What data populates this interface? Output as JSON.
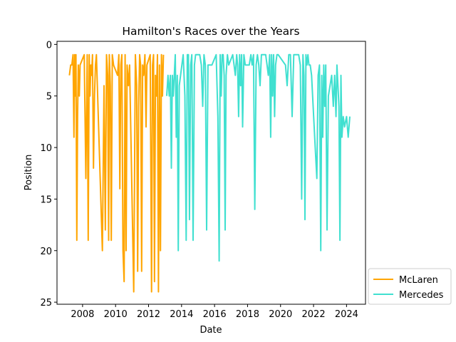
{
  "chart_data": {
    "type": "line",
    "title": "Hamilton's Races over the Years",
    "xlabel": "Date",
    "ylabel": "Position",
    "xlim": [
      2006.45,
      2025.15
    ],
    "ylim": [
      25.2,
      -0.3
    ],
    "y_inverted": true,
    "grid": false,
    "legend_placement": "outside-lower-right",
    "x_ticks": [
      2008,
      2010,
      2012,
      2014,
      2016,
      2018,
      2020,
      2022,
      2024
    ],
    "x_tick_labels": [
      "2008",
      "2010",
      "2012",
      "2014",
      "2016",
      "2018",
      "2020",
      "2022",
      "2024"
    ],
    "y_ticks": [
      0,
      5,
      10,
      15,
      20,
      25
    ],
    "y_tick_labels": [
      "0",
      "5",
      "10",
      "15",
      "20",
      "25"
    ],
    "series": [
      {
        "name": "McLaren",
        "color": "#ffa500",
        "x": [
          2007.2,
          2007.28,
          2007.35,
          2007.42,
          2007.48,
          2007.52,
          2007.56,
          2007.6,
          2007.65,
          2007.7,
          2007.74,
          2007.8,
          2007.85,
          2008.1,
          2008.2,
          2008.28,
          2008.34,
          2008.4,
          2008.45,
          2008.5,
          2008.55,
          2008.6,
          2008.66,
          2008.72,
          2008.78,
          2008.84,
          2009.2,
          2009.3,
          2009.38,
          2009.45,
          2009.52,
          2009.58,
          2009.62,
          2009.68,
          2009.74,
          2009.8,
          2009.88,
          2010.12,
          2010.2,
          2010.26,
          2010.32,
          2010.38,
          2010.45,
          2010.52,
          2010.58,
          2010.64,
          2010.7,
          2010.78,
          2010.85,
          2011.1,
          2011.2,
          2011.28,
          2011.34,
          2011.4,
          2011.46,
          2011.52,
          2011.58,
          2011.64,
          2011.7,
          2011.78,
          2011.85,
          2011.9,
          2012.1,
          2012.18,
          2012.24,
          2012.3,
          2012.36,
          2012.42,
          2012.48,
          2012.54,
          2012.6,
          2012.66,
          2012.72,
          2012.78,
          2012.84,
          2012.9
        ],
        "y": [
          3,
          2,
          2,
          1,
          9,
          1,
          5,
          1,
          19,
          7,
          2,
          5,
          2,
          1,
          13,
          1,
          19,
          1,
          5,
          2,
          3,
          1,
          12,
          5,
          2,
          1,
          20,
          4,
          18,
          1,
          3,
          19,
          1,
          4,
          19,
          1,
          2,
          3,
          1,
          14,
          2,
          1,
          20,
          23,
          1,
          20,
          2,
          4,
          2,
          24,
          1,
          4,
          22,
          6,
          1,
          2,
          22,
          2,
          3,
          1,
          8,
          2,
          1,
          24,
          2,
          1,
          23,
          3,
          5,
          1,
          24,
          2,
          20,
          1,
          5,
          1
        ]
      },
      {
        "name": "Mercedes",
        "color": "#40e0d0",
        "x": [
          2013.1,
          2013.18,
          2013.25,
          2013.32,
          2013.38,
          2013.44,
          2013.5,
          2013.56,
          2013.62,
          2013.68,
          2013.74,
          2013.8,
          2013.86,
          2014.1,
          2014.2,
          2014.28,
          2014.35,
          2014.42,
          2014.48,
          2014.55,
          2014.62,
          2014.7,
          2014.78,
          2014.85,
          2015.1,
          2015.2,
          2015.28,
          2015.36,
          2015.44,
          2015.52,
          2015.6,
          2015.68,
          2015.76,
          2015.84,
          2016.1,
          2016.2,
          2016.28,
          2016.34,
          2016.4,
          2016.46,
          2016.52,
          2016.58,
          2016.64,
          2016.7,
          2016.78,
          2016.86,
          2017.1,
          2017.18,
          2017.26,
          2017.34,
          2017.4,
          2017.46,
          2017.52,
          2017.58,
          2017.64,
          2017.7,
          2017.78,
          2017.86,
          2018.1,
          2018.2,
          2018.28,
          2018.36,
          2018.44,
          2018.52,
          2018.6,
          2018.68,
          2018.76,
          2018.84,
          2019.1,
          2019.18,
          2019.26,
          2019.34,
          2019.4,
          2019.46,
          2019.52,
          2019.58,
          2019.64,
          2019.7,
          2019.78,
          2019.86,
          2020.3,
          2020.4,
          2020.5,
          2020.6,
          2020.7,
          2020.8,
          2021.1,
          2021.2,
          2021.28,
          2021.36,
          2021.42,
          2021.48,
          2021.54,
          2021.6,
          2021.66,
          2021.72,
          2021.8,
          2021.88,
          2022.1,
          2022.2,
          2022.28,
          2022.36,
          2022.44,
          2022.5,
          2022.56,
          2022.62,
          2022.68,
          2022.74,
          2022.82,
          2022.9,
          2023.1,
          2023.2,
          2023.28,
          2023.36,
          2023.42,
          2023.48,
          2023.54,
          2023.6,
          2023.66,
          2023.72,
          2023.8,
          2023.88,
          2024.0,
          2024.1,
          2024.2
        ],
        "y": [
          5,
          3,
          5,
          3,
          12,
          3,
          5,
          3,
          1,
          9,
          3,
          20,
          4,
          1,
          5,
          19,
          1,
          1,
          17,
          2,
          1,
          19,
          2,
          1,
          1,
          2,
          6,
          1,
          2,
          18,
          2,
          2,
          2,
          2,
          1,
          7,
          21,
          1,
          5,
          1,
          1,
          3,
          18,
          3,
          1,
          2,
          1,
          2,
          3,
          1,
          2,
          7,
          1,
          4,
          1,
          8,
          1,
          2,
          2,
          1,
          2,
          1,
          16,
          2,
          1,
          2,
          4,
          1,
          1,
          2,
          3,
          1,
          9,
          1,
          5,
          1,
          7,
          2,
          1,
          1,
          2,
          4,
          1,
          1,
          7,
          1,
          1,
          2,
          15,
          1,
          3,
          17,
          1,
          2,
          1,
          2,
          2,
          3,
          10,
          13,
          3,
          2,
          20,
          3,
          9,
          2,
          6,
          2,
          18,
          5,
          3,
          6,
          3,
          7,
          2,
          4,
          6,
          19,
          3,
          9,
          7,
          8,
          7,
          9,
          7
        ]
      }
    ]
  }
}
